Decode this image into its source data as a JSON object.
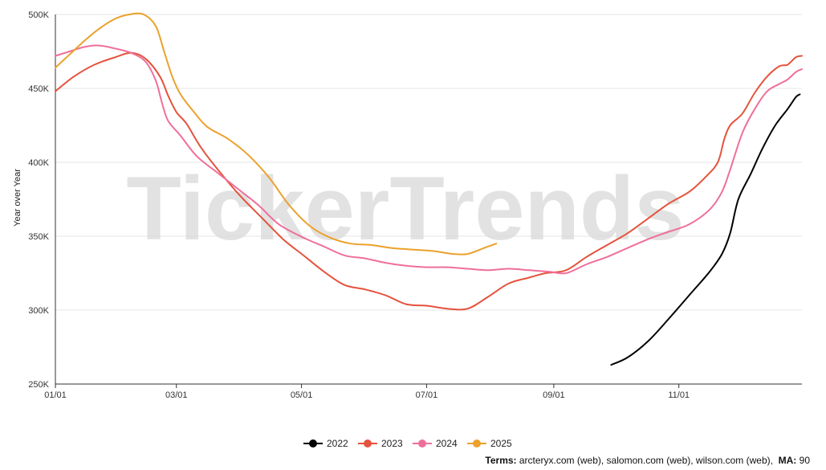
{
  "chart_data": {
    "type": "line",
    "ylabel": "Year over Year",
    "ylim": [
      250000,
      500000
    ],
    "yticks": [
      250000,
      300000,
      350000,
      400000,
      450000,
      500000
    ],
    "ytick_labels": [
      "250K",
      "300K",
      "350K",
      "400K",
      "450K",
      "500K"
    ],
    "xlim": [
      1,
      365
    ],
    "xticks": [
      1,
      60,
      121,
      182,
      244,
      305
    ],
    "xtick_labels": [
      "01/01",
      "03/01",
      "05/01",
      "07/01",
      "09/01",
      "11/01"
    ],
    "grid": "horizontal",
    "legend_position": "bottom",
    "watermark": "TickerTrends",
    "series": [
      {
        "name": "2022",
        "color": "#000000",
        "points": [
          [
            272,
            263000
          ],
          [
            280,
            268000
          ],
          [
            290,
            279000
          ],
          [
            300,
            294000
          ],
          [
            310,
            310000
          ],
          [
            320,
            326000
          ],
          [
            326,
            338000
          ],
          [
            330,
            352000
          ],
          [
            334,
            375000
          ],
          [
            340,
            392000
          ],
          [
            346,
            410000
          ],
          [
            352,
            425000
          ],
          [
            358,
            436000
          ],
          [
            362,
            444000
          ],
          [
            364,
            446000
          ]
        ]
      },
      {
        "name": "2023",
        "color": "#e5533d",
        "points": [
          [
            1,
            448000
          ],
          [
            10,
            458000
          ],
          [
            20,
            466000
          ],
          [
            30,
            471000
          ],
          [
            38,
            474000
          ],
          [
            45,
            470000
          ],
          [
            52,
            458000
          ],
          [
            56,
            445000
          ],
          [
            60,
            434000
          ],
          [
            65,
            426000
          ],
          [
            72,
            410000
          ],
          [
            82,
            392000
          ],
          [
            92,
            376000
          ],
          [
            102,
            362000
          ],
          [
            112,
            348000
          ],
          [
            122,
            337000
          ],
          [
            132,
            326000
          ],
          [
            142,
            317000
          ],
          [
            152,
            314000
          ],
          [
            162,
            310000
          ],
          [
            172,
            304000
          ],
          [
            182,
            303000
          ],
          [
            192,
            301000
          ],
          [
            202,
            301000
          ],
          [
            212,
            309000
          ],
          [
            222,
            318000
          ],
          [
            232,
            322000
          ],
          [
            240,
            325000
          ],
          [
            250,
            327000
          ],
          [
            260,
            336000
          ],
          [
            270,
            344000
          ],
          [
            280,
            352000
          ],
          [
            290,
            362000
          ],
          [
            300,
            372000
          ],
          [
            310,
            380000
          ],
          [
            318,
            390000
          ],
          [
            324,
            400000
          ],
          [
            327,
            415000
          ],
          [
            330,
            425000
          ],
          [
            336,
            433000
          ],
          [
            342,
            447000
          ],
          [
            348,
            458000
          ],
          [
            354,
            465000
          ],
          [
            358,
            466000
          ],
          [
            362,
            471000
          ],
          [
            365,
            472000
          ]
        ]
      },
      {
        "name": "2024",
        "color": "#ef6f9a",
        "points": [
          [
            1,
            472000
          ],
          [
            8,
            475000
          ],
          [
            15,
            478000
          ],
          [
            22,
            479000
          ],
          [
            30,
            477000
          ],
          [
            38,
            474000
          ],
          [
            45,
            468000
          ],
          [
            50,
            455000
          ],
          [
            53,
            440000
          ],
          [
            56,
            428000
          ],
          [
            62,
            418000
          ],
          [
            70,
            404000
          ],
          [
            80,
            393000
          ],
          [
            90,
            382000
          ],
          [
            100,
            371000
          ],
          [
            110,
            358000
          ],
          [
            122,
            349000
          ],
          [
            132,
            343000
          ],
          [
            142,
            337000
          ],
          [
            152,
            335000
          ],
          [
            162,
            332000
          ],
          [
            172,
            330000
          ],
          [
            182,
            329000
          ],
          [
            192,
            329000
          ],
          [
            202,
            328000
          ],
          [
            212,
            327000
          ],
          [
            222,
            328000
          ],
          [
            232,
            327000
          ],
          [
            242,
            326000
          ],
          [
            250,
            325000
          ],
          [
            260,
            331000
          ],
          [
            270,
            336000
          ],
          [
            280,
            342000
          ],
          [
            290,
            348000
          ],
          [
            300,
            353000
          ],
          [
            310,
            358000
          ],
          [
            320,
            368000
          ],
          [
            326,
            380000
          ],
          [
            330,
            395000
          ],
          [
            336,
            420000
          ],
          [
            342,
            436000
          ],
          [
            348,
            448000
          ],
          [
            354,
            453000
          ],
          [
            358,
            456000
          ],
          [
            362,
            461000
          ],
          [
            365,
            463000
          ]
        ]
      },
      {
        "name": "2025",
        "color": "#eba12c",
        "points": [
          [
            1,
            464000
          ],
          [
            8,
            473000
          ],
          [
            15,
            482000
          ],
          [
            22,
            490000
          ],
          [
            30,
            497000
          ],
          [
            37,
            500000
          ],
          [
            44,
            500000
          ],
          [
            50,
            492000
          ],
          [
            54,
            475000
          ],
          [
            58,
            458000
          ],
          [
            62,
            446000
          ],
          [
            68,
            435000
          ],
          [
            75,
            424000
          ],
          [
            85,
            416000
          ],
          [
            95,
            405000
          ],
          [
            105,
            390000
          ],
          [
            115,
            371000
          ],
          [
            125,
            357000
          ],
          [
            135,
            349000
          ],
          [
            145,
            345000
          ],
          [
            155,
            344000
          ],
          [
            165,
            342000
          ],
          [
            175,
            341000
          ],
          [
            185,
            340000
          ],
          [
            195,
            338000
          ],
          [
            202,
            338000
          ],
          [
            210,
            342000
          ],
          [
            216,
            345000
          ]
        ]
      }
    ]
  },
  "legend": {
    "items": [
      {
        "label": "2022",
        "color": "#000000"
      },
      {
        "label": "2023",
        "color": "#e5533d"
      },
      {
        "label": "2024",
        "color": "#ef6f9a"
      },
      {
        "label": "2025",
        "color": "#eba12c"
      }
    ]
  },
  "footer": {
    "terms_label": "Terms:",
    "terms_value": "arcteryx.com (web), salomon.com (web), wilson.com (web),",
    "ma_label": "MA:",
    "ma_value": "90"
  }
}
